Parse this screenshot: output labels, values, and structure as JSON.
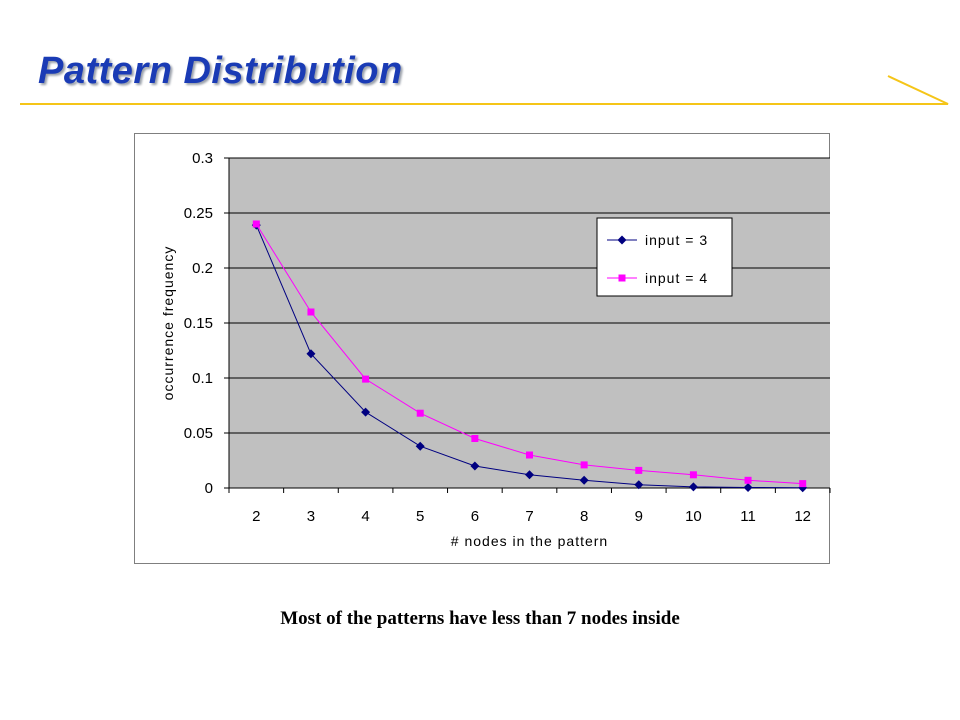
{
  "slide": {
    "title": "Pattern Distribution",
    "caption": "Most of the patterns have less than 7 nodes inside",
    "accent_color": "#1a3bb5",
    "rule_color": "#f5c518"
  },
  "chart_data": {
    "type": "line",
    "title": "",
    "xlabel": "# nodes in the pattern",
    "ylabel": "occurrence frequency",
    "categories": [
      "2",
      "3",
      "4",
      "5",
      "6",
      "7",
      "8",
      "9",
      "10",
      "11",
      "12"
    ],
    "yticks": [
      "0",
      "0.05",
      "0.1",
      "0.15",
      "0.2",
      "0.25",
      "0.3"
    ],
    "ylim": [
      0,
      0.3
    ],
    "grid": true,
    "plot_background": "#c0c0c0",
    "legend_position": "top-right",
    "series": [
      {
        "name": "input = 3",
        "color": "#000080",
        "marker": "diamond",
        "values": [
          0.239,
          0.122,
          0.069,
          0.038,
          0.02,
          0.012,
          0.007,
          0.003,
          0.001,
          0.0005,
          0.0002
        ]
      },
      {
        "name": "input = 4",
        "color": "#ff00ff",
        "marker": "square",
        "values": [
          0.24,
          0.16,
          0.099,
          0.068,
          0.045,
          0.03,
          0.021,
          0.016,
          0.012,
          0.007,
          0.004
        ]
      }
    ]
  }
}
